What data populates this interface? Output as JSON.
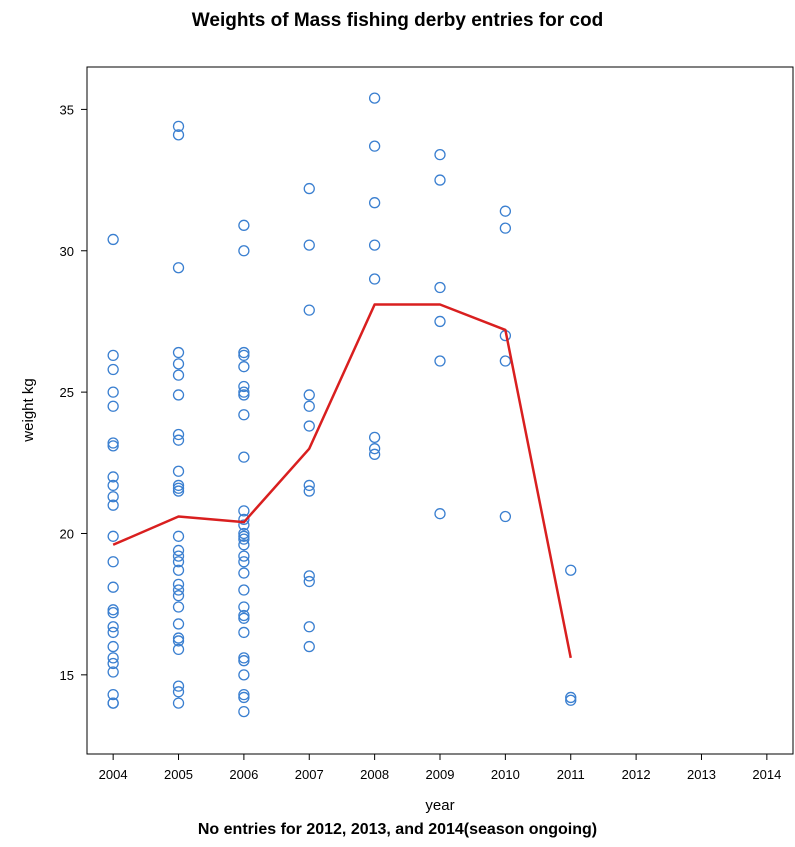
{
  "chart_data": {
    "type": "scatter",
    "title": "Weights of Mass fishing derby entries for cod",
    "caption": "No entries for 2012, 2013, and 2014(season ongoing)",
    "xlabel": "year",
    "ylabel": "weight kg",
    "xlim": [
      2003.6,
      2014.4
    ],
    "ylim": [
      12.2,
      36.5
    ],
    "xticks": [
      2004,
      2005,
      2006,
      2007,
      2008,
      2009,
      2010,
      2011,
      2012,
      2013,
      2014
    ],
    "yticks": [
      15,
      20,
      25,
      30,
      35
    ],
    "grid": false,
    "colors": {
      "points": "#3a7fd0",
      "line": "#d91f1f"
    },
    "series": [
      {
        "type": "scatter",
        "points": [
          [
            2004,
            30.4
          ],
          [
            2004,
            26.3
          ],
          [
            2004,
            25.8
          ],
          [
            2004,
            25.0
          ],
          [
            2004,
            24.5
          ],
          [
            2004,
            23.2
          ],
          [
            2004,
            23.1
          ],
          [
            2004,
            22.0
          ],
          [
            2004,
            21.7
          ],
          [
            2004,
            21.3
          ],
          [
            2004,
            21.0
          ],
          [
            2004,
            19.9
          ],
          [
            2004,
            19.0
          ],
          [
            2004,
            18.1
          ],
          [
            2004,
            17.3
          ],
          [
            2004,
            17.2
          ],
          [
            2004,
            16.7
          ],
          [
            2004,
            16.5
          ],
          [
            2004,
            16.0
          ],
          [
            2004,
            15.6
          ],
          [
            2004,
            15.4
          ],
          [
            2004,
            15.1
          ],
          [
            2004,
            14.3
          ],
          [
            2004,
            14.0
          ],
          [
            2004,
            14.0
          ],
          [
            2005,
            34.4
          ],
          [
            2005,
            34.1
          ],
          [
            2005,
            29.4
          ],
          [
            2005,
            26.4
          ],
          [
            2005,
            26.0
          ],
          [
            2005,
            25.6
          ],
          [
            2005,
            24.9
          ],
          [
            2005,
            23.5
          ],
          [
            2005,
            23.3
          ],
          [
            2005,
            22.2
          ],
          [
            2005,
            21.7
          ],
          [
            2005,
            21.6
          ],
          [
            2005,
            21.5
          ],
          [
            2005,
            19.9
          ],
          [
            2005,
            19.4
          ],
          [
            2005,
            19.2
          ],
          [
            2005,
            19.0
          ],
          [
            2005,
            18.7
          ],
          [
            2005,
            18.2
          ],
          [
            2005,
            18.0
          ],
          [
            2005,
            17.8
          ],
          [
            2005,
            17.4
          ],
          [
            2005,
            16.8
          ],
          [
            2005,
            16.3
          ],
          [
            2005,
            16.2
          ],
          [
            2005,
            15.9
          ],
          [
            2005,
            14.6
          ],
          [
            2005,
            14.4
          ],
          [
            2005,
            14.0
          ],
          [
            2006,
            30.9
          ],
          [
            2006,
            30.0
          ],
          [
            2006,
            26.4
          ],
          [
            2006,
            26.3
          ],
          [
            2006,
            25.9
          ],
          [
            2006,
            25.2
          ],
          [
            2006,
            25.0
          ],
          [
            2006,
            24.9
          ],
          [
            2006,
            24.2
          ],
          [
            2006,
            22.7
          ],
          [
            2006,
            20.8
          ],
          [
            2006,
            20.5
          ],
          [
            2006,
            20.3
          ],
          [
            2006,
            20.0
          ],
          [
            2006,
            19.9
          ],
          [
            2006,
            19.8
          ],
          [
            2006,
            19.6
          ],
          [
            2006,
            19.2
          ],
          [
            2006,
            19.0
          ],
          [
            2006,
            18.6
          ],
          [
            2006,
            18.0
          ],
          [
            2006,
            17.4
          ],
          [
            2006,
            17.1
          ],
          [
            2006,
            17.0
          ],
          [
            2006,
            16.5
          ],
          [
            2006,
            15.6
          ],
          [
            2006,
            15.5
          ],
          [
            2006,
            15.0
          ],
          [
            2006,
            14.3
          ],
          [
            2006,
            14.2
          ],
          [
            2006,
            13.7
          ],
          [
            2007,
            32.2
          ],
          [
            2007,
            30.2
          ],
          [
            2007,
            27.9
          ],
          [
            2007,
            24.9
          ],
          [
            2007,
            24.5
          ],
          [
            2007,
            23.8
          ],
          [
            2007,
            21.7
          ],
          [
            2007,
            21.5
          ],
          [
            2007,
            18.5
          ],
          [
            2007,
            18.3
          ],
          [
            2007,
            16.7
          ],
          [
            2007,
            16.0
          ],
          [
            2008,
            35.4
          ],
          [
            2008,
            33.7
          ],
          [
            2008,
            31.7
          ],
          [
            2008,
            30.2
          ],
          [
            2008,
            29.0
          ],
          [
            2008,
            23.4
          ],
          [
            2008,
            23.0
          ],
          [
            2008,
            22.8
          ],
          [
            2009,
            33.4
          ],
          [
            2009,
            32.5
          ],
          [
            2009,
            28.7
          ],
          [
            2009,
            27.5
          ],
          [
            2009,
            26.1
          ],
          [
            2009,
            20.7
          ],
          [
            2010,
            31.4
          ],
          [
            2010,
            30.8
          ],
          [
            2010,
            27.0
          ],
          [
            2010,
            26.1
          ],
          [
            2010,
            20.6
          ],
          [
            2011,
            18.7
          ],
          [
            2011,
            14.2
          ],
          [
            2011,
            14.1
          ]
        ]
      },
      {
        "type": "line",
        "x": [
          2004,
          2005,
          2006,
          2007,
          2008,
          2009,
          2010,
          2011
        ],
        "y": [
          19.6,
          20.6,
          20.4,
          23.0,
          28.1,
          28.1,
          27.2,
          15.6
        ]
      }
    ]
  }
}
